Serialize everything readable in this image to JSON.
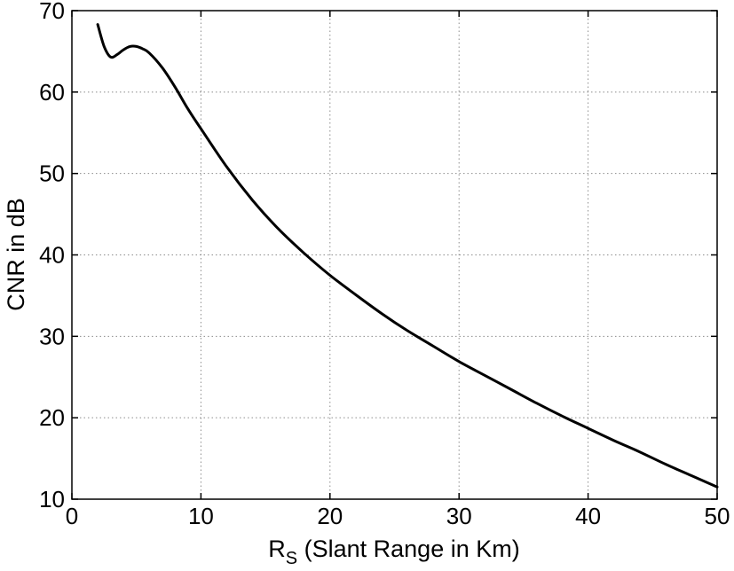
{
  "chart_data": {
    "type": "line",
    "title": "",
    "xlabel_main": "R",
    "xlabel_sub": "S",
    "xlabel_rest": " (Slant Range in Km)",
    "ylabel": "CNR in dB",
    "xlim": [
      0,
      50
    ],
    "ylim": [
      10,
      70
    ],
    "xticks": [
      0,
      10,
      20,
      30,
      40,
      50
    ],
    "yticks": [
      10,
      20,
      30,
      40,
      50,
      60,
      70
    ],
    "xtick_labels": [
      "0",
      "10",
      "20",
      "30",
      "40",
      "50"
    ],
    "ytick_labels": [
      "10",
      "20",
      "30",
      "40",
      "50",
      "60",
      "70"
    ],
    "grid": true,
    "line_color": "#000000",
    "series": [
      {
        "x": [
          2.0,
          2.5,
          3.0,
          3.5,
          4.0,
          4.5,
          5.0,
          5.5,
          6.0,
          7.0,
          8.0,
          9.0,
          10.0,
          12.0,
          14.0,
          16.0,
          18.0,
          20.0,
          22.0,
          24.0,
          26.0,
          28.0,
          30.0,
          32.0,
          34.0,
          36.0,
          38.0,
          40.0,
          42.0,
          44.0,
          46.0,
          48.0,
          50.0
        ],
        "y": [
          68.3,
          65.6,
          64.3,
          64.6,
          65.2,
          65.6,
          65.6,
          65.3,
          64.8,
          63.0,
          60.6,
          57.9,
          55.5,
          50.8,
          46.7,
          43.2,
          40.2,
          37.5,
          35.1,
          32.8,
          30.7,
          28.8,
          26.9,
          25.2,
          23.5,
          21.8,
          20.2,
          18.7,
          17.2,
          15.8,
          14.3,
          12.9,
          11.5
        ]
      }
    ]
  }
}
